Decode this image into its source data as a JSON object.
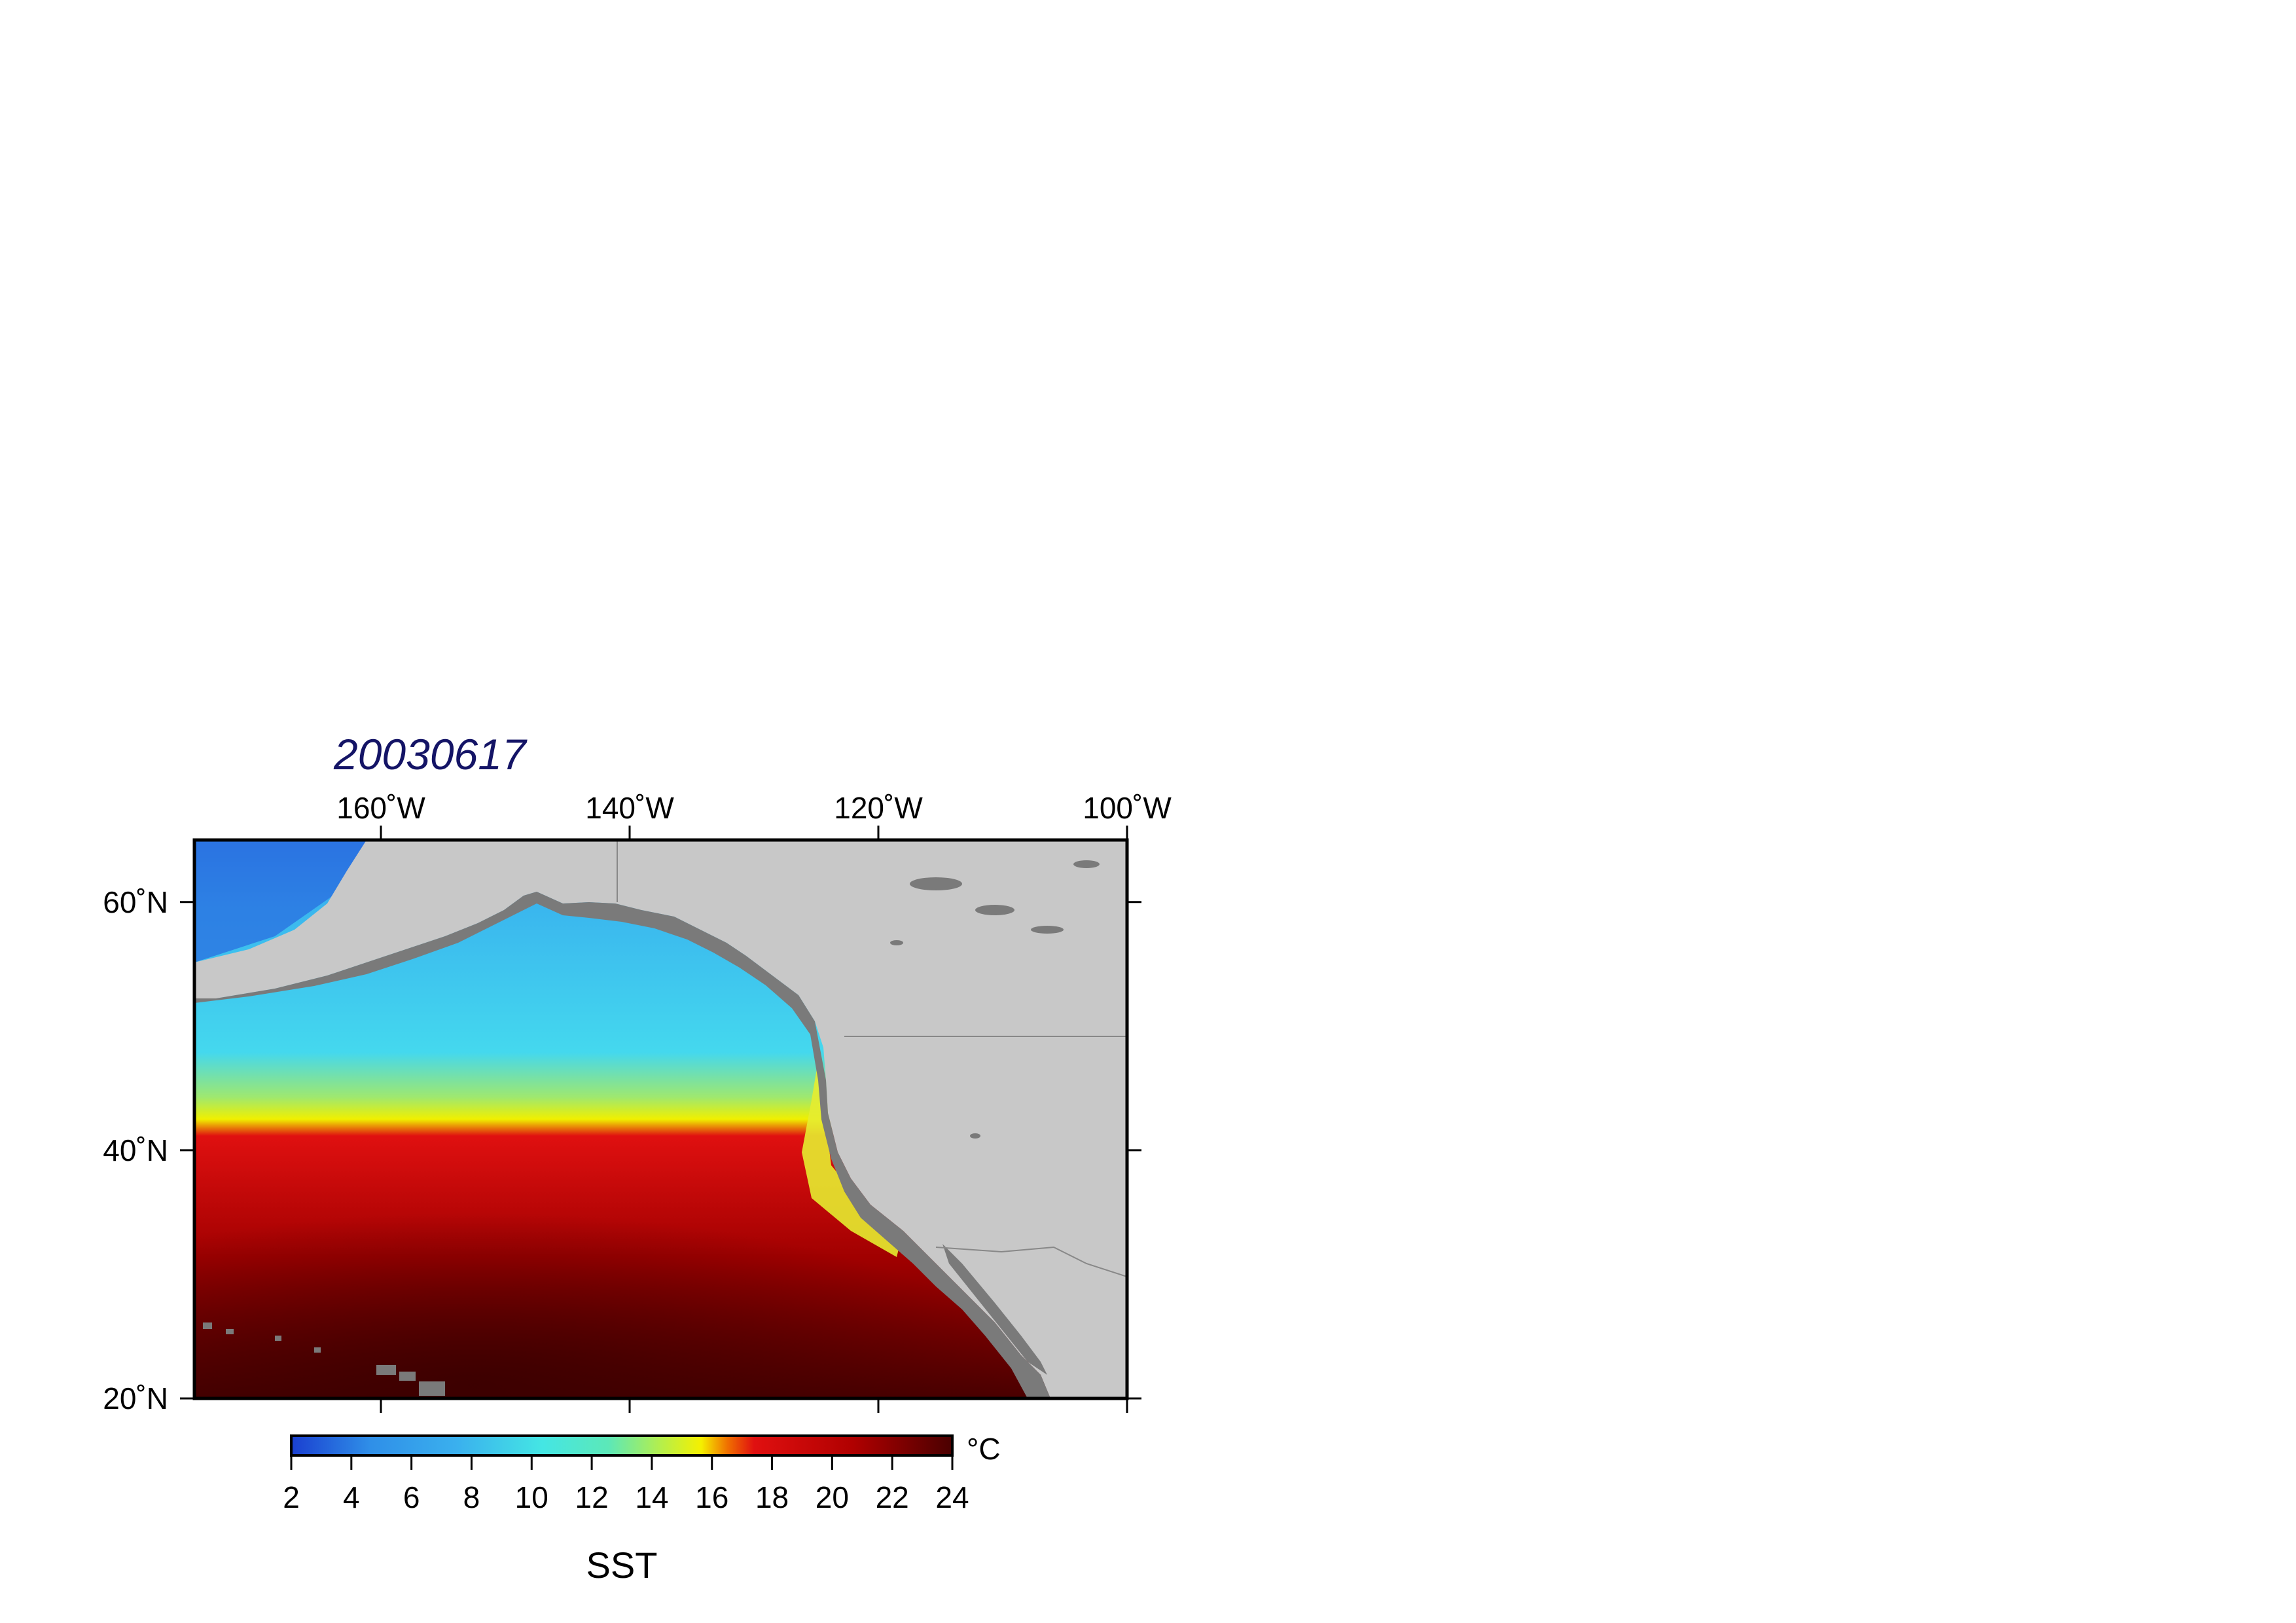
{
  "title": "20030617",
  "map": {
    "lon_ticks": [
      "160˚W",
      "140˚W",
      "120˚W",
      "100˚W"
    ],
    "lat_ticks": [
      "60˚N",
      "40˚N",
      "20˚N"
    ],
    "lon_values": [
      -160,
      -140,
      -120,
      -100
    ],
    "lat_values": [
      60,
      40,
      20
    ],
    "lon_range": [
      -175,
      -100
    ],
    "lat_range": [
      20,
      65
    ],
    "land_color": "#c8c8c8",
    "coast_mask_color": "#7a7a7a"
  },
  "colorbar": {
    "unit": "°C",
    "label": "SST",
    "ticks": [
      "2",
      "4",
      "6",
      "8",
      "10",
      "12",
      "14",
      "16",
      "18",
      "20",
      "22",
      "24"
    ],
    "range": [
      2,
      24
    ],
    "colors": [
      "#1a3fd0",
      "#2f8fe8",
      "#3ab0ee",
      "#45cfee",
      "#44e6e4",
      "#5ce8b8",
      "#b6ef4a",
      "#f5f000",
      "#e01010",
      "#c40000",
      "#900000",
      "#4a0000"
    ]
  }
}
